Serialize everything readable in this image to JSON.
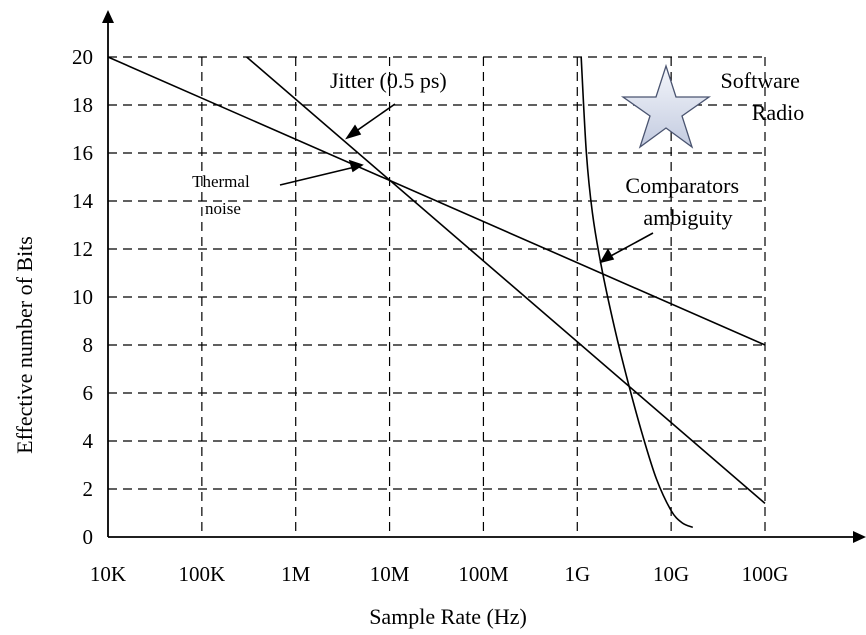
{
  "chart_data": {
    "type": "line",
    "title": "",
    "xlabel": "Sample Rate (Hz)",
    "ylabel": "Effective number of Bits",
    "x_scale": "log",
    "x_ticks": [
      "10K",
      "100K",
      "1M",
      "10M",
      "100M",
      "1G",
      "10G",
      "100G"
    ],
    "x_tick_values": [
      10000,
      100000,
      1000000,
      10000000,
      100000000,
      1000000000,
      10000000000,
      100000000000
    ],
    "y_ticks": [
      "0",
      "2",
      "4",
      "6",
      "8",
      "10",
      "12",
      "14",
      "16",
      "18",
      "20"
    ],
    "y_tick_values": [
      0,
      2,
      4,
      6,
      8,
      10,
      12,
      14,
      16,
      18,
      20
    ],
    "xlim": [
      10000,
      100000000000
    ],
    "ylim": [
      0,
      20
    ],
    "grid": true,
    "series": [
      {
        "id": "thermal",
        "points": [
          [
            10000,
            20
          ],
          [
            100000000000,
            8
          ]
        ]
      },
      {
        "id": "jitter",
        "points": [
          [
            300000,
            20
          ],
          [
            100000000000,
            1.4
          ]
        ]
      },
      {
        "id": "comparators",
        "points": [
          [
            1100000000,
            20
          ],
          [
            1250000000,
            16
          ],
          [
            1450000000,
            13.5
          ],
          [
            1800000000,
            11.3
          ],
          [
            2500000000,
            8.7
          ],
          [
            3500000000,
            6.4
          ],
          [
            5000000000,
            4.2
          ],
          [
            7000000000,
            2.4
          ],
          [
            10000000000,
            1.1
          ],
          [
            13000000000,
            0.6
          ],
          [
            17000000000,
            0.4
          ]
        ]
      }
    ],
    "annotations": [
      {
        "id": "jitter",
        "lines": [
          "Jitter (0.5 ps)"
        ]
      },
      {
        "id": "thermal",
        "lines": [
          "Thermal",
          "noise"
        ]
      },
      {
        "id": "comparators",
        "lines": [
          "Comparators",
          "ambiguity"
        ]
      },
      {
        "id": "software",
        "lines": [
          "Software",
          "Radio"
        ]
      }
    ]
  }
}
